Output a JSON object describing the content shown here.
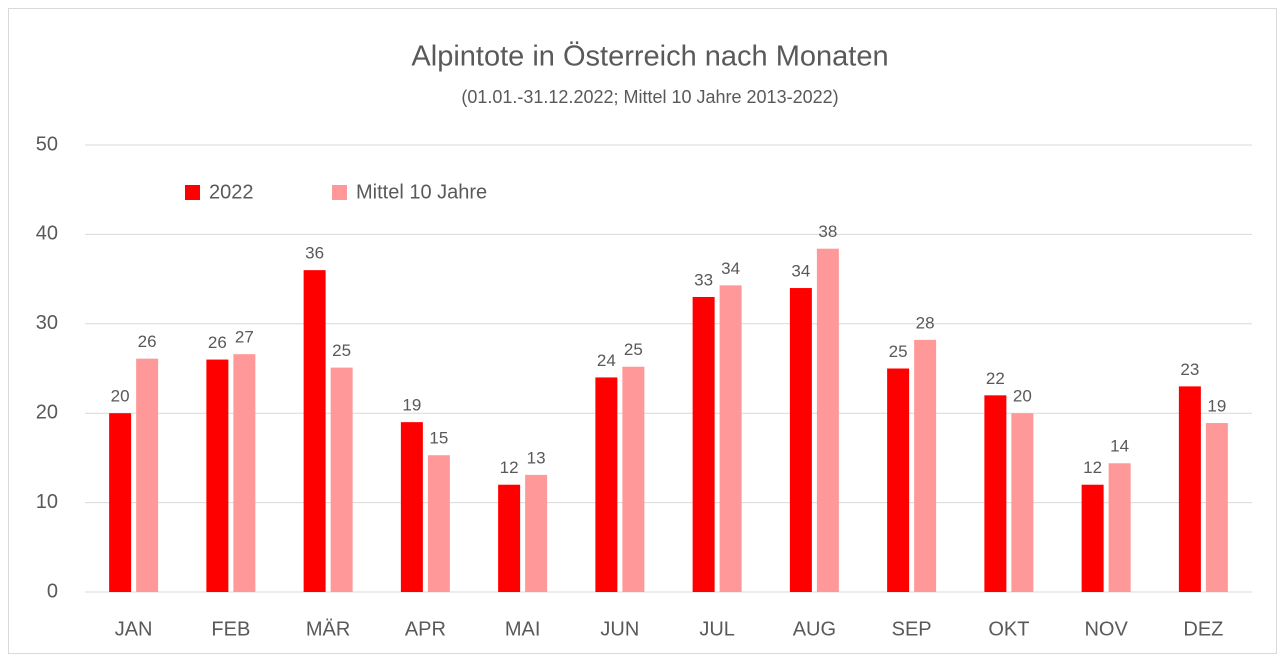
{
  "chart_data": {
    "type": "bar",
    "title": "Alpintote in Österreich nach Monaten",
    "subtitle": "(01.01.-31.12.2022; Mittel 10 Jahre 2013-2022)",
    "categories": [
      "JAN",
      "FEB",
      "MÄR",
      "APR",
      "MAI",
      "JUN",
      "JUL",
      "AUG",
      "SEP",
      "OKT",
      "NOV",
      "DEZ"
    ],
    "series": [
      {
        "name": "2022",
        "color": "#ff0000",
        "values": [
          20,
          26,
          36,
          19,
          12,
          24,
          33,
          34,
          25,
          22,
          12,
          23
        ]
      },
      {
        "name": "Mittel 10 Jahre",
        "color": "#ff9999",
        "values": [
          26.1,
          26.6,
          25.1,
          15.3,
          13.1,
          25.2,
          34.3,
          38.4,
          28.2,
          20.0,
          14.4,
          18.9
        ],
        "value_labels": [
          "26",
          "27",
          "25",
          "15",
          "13",
          "25",
          "34",
          "38",
          "28",
          "20",
          "14",
          "19"
        ]
      }
    ],
    "ylim": [
      0,
      50
    ],
    "yticks": [
      0,
      10,
      20,
      30,
      40,
      50
    ],
    "grid": true,
    "legend": "top-left"
  }
}
